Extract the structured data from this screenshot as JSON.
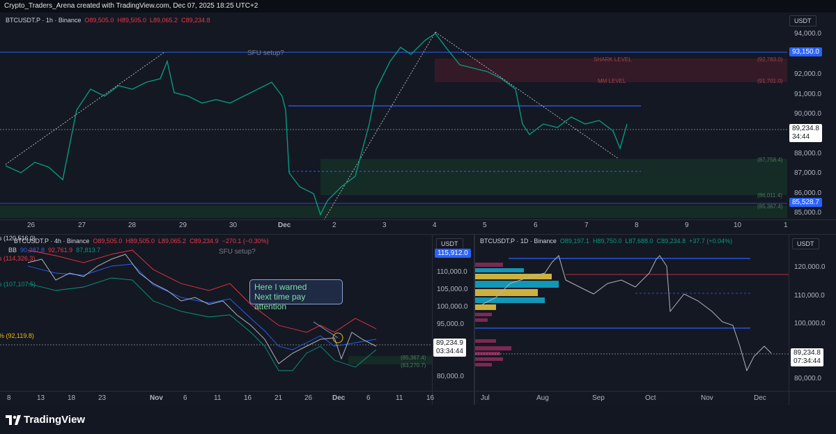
{
  "header": {
    "attribution": "Crypto_Traders_Arena created with TradingView.com, Dec 07, 2025 18:25 UTC+2"
  },
  "top_chart": {
    "symbol": "BTCUSDT.P · 1h · Binance",
    "o": "O89,505.0",
    "h": "H89,505.0",
    "l": "L89,065.2",
    "c": "C89,234.8",
    "currency": "USDT",
    "annotation_sfu": "SFU setup?",
    "shark_level": "SHARK LEVEL",
    "mm_level": "MM LEVEL",
    "level_labels": [
      "(92,783.0)",
      "(91,701.0)",
      "(87,758.4)",
      "(86,011.4)",
      "(85,367.4)"
    ],
    "price_ticks": [
      "94,000.0",
      "92,000.0",
      "91,000.0",
      "90,000.0",
      "88,000.0",
      "87,000.0",
      "86,000.0",
      "85,000.0"
    ],
    "badge_blue_top": "93,150.0",
    "badge_current": "89,234.8",
    "badge_timer": "34:44",
    "badge_blue_bottom": "85,528.7",
    "x_ticks": [
      "26",
      "27",
      "28",
      "29",
      "30",
      "Dec",
      "2",
      "3",
      "4",
      "5",
      "6",
      "7",
      "8",
      "9",
      "10",
      "1"
    ]
  },
  "left_chart": {
    "symbol": "BTCUSDT.P · 4h · Binance",
    "o": "O89,505.0",
    "h": "H89,505.0",
    "l": "L89,065.2",
    "c": "C89,234.9",
    "change": "−270.1 (−0.30%)",
    "bb_label": "BB",
    "bb_values": [
      "90,287.8",
      "92,761.9",
      "87,813.7"
    ],
    "left_labels": [
      "s (120,516.0)",
      "s (114,326.3)",
      "s (107,107.5)",
      "% (92,119.8)"
    ],
    "annotation_sfu": "SFU setup?",
    "callout_line1": "Here I warned",
    "callout_line2": "Next time pay attention",
    "level_labels": [
      "(85,367.4)",
      "(83,270.7)"
    ],
    "currency": "USDT",
    "badge_top": "115,912.0",
    "price_ticks": [
      "110,000.0",
      "105,000.0",
      "100,000.0",
      "95,000.0",
      "80,000.0"
    ],
    "badge_current": "89,234.9",
    "badge_timer": "03:34:44",
    "x_ticks": [
      "8",
      "13",
      "18",
      "23",
      "Nov",
      "6",
      "11",
      "16",
      "21",
      "26",
      "Dec",
      "6",
      "11",
      "16"
    ]
  },
  "right_chart": {
    "symbol": "BTCUSDT.P · 1D · Binance",
    "o": "O89,197.1",
    "h": "H89,750.0",
    "l": "L87,688.0",
    "c": "C89,234.8",
    "change": "+37.7 (+0.04%)",
    "currency": "USDT",
    "price_ticks": [
      "120,000.0",
      "110,000.0",
      "100,000.0",
      "80,000.0"
    ],
    "badge_current": "89,234.8",
    "badge_timer": "07:34:44",
    "x_ticks": [
      "Jul",
      "Aug",
      "Sep",
      "Oct",
      "Nov",
      "Dec"
    ]
  },
  "footer": {
    "logo_text": "TradingView"
  },
  "colors": {
    "up": "#089981",
    "down": "#f23645",
    "blue": "#2962ff",
    "bg": "#131722"
  }
}
